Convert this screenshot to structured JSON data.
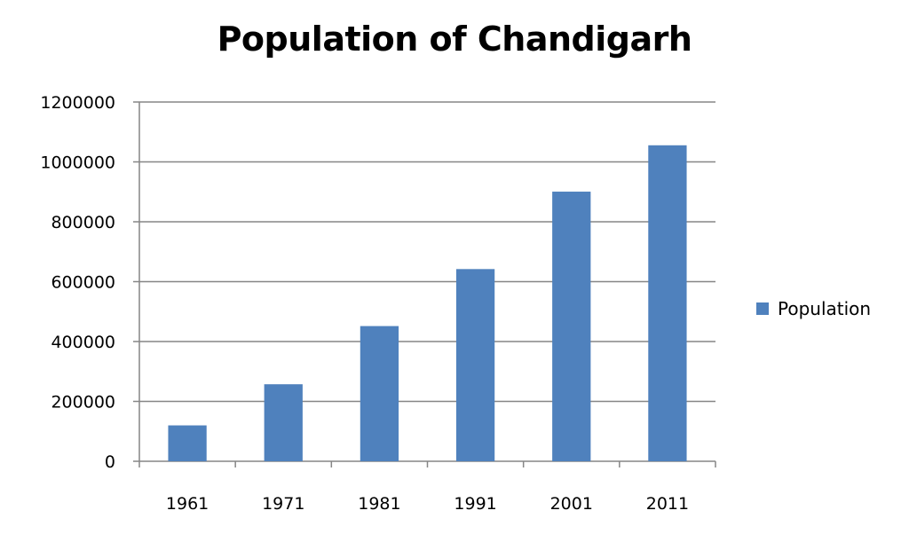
{
  "chart_data": {
    "type": "bar",
    "title": "Population of Chandigarh",
    "xlabel": "",
    "ylabel": "",
    "categories": [
      "1961",
      "1971",
      "1981",
      "1991",
      "2001",
      "2011"
    ],
    "series": [
      {
        "name": "Population",
        "color": "#4F81BD",
        "values": [
          119881,
          257251,
          451610,
          642015,
          900635,
          1055450
        ]
      }
    ],
    "ylim": [
      0,
      1200000
    ],
    "yticks": [
      0,
      200000,
      400000,
      600000,
      800000,
      1000000,
      1200000
    ],
    "ytick_labels": [
      "0",
      "200000",
      "400000",
      "600000",
      "800000",
      "1000000",
      "1200000"
    ],
    "grid": true,
    "legend": {
      "position": "right",
      "entries": [
        "Population"
      ]
    }
  }
}
